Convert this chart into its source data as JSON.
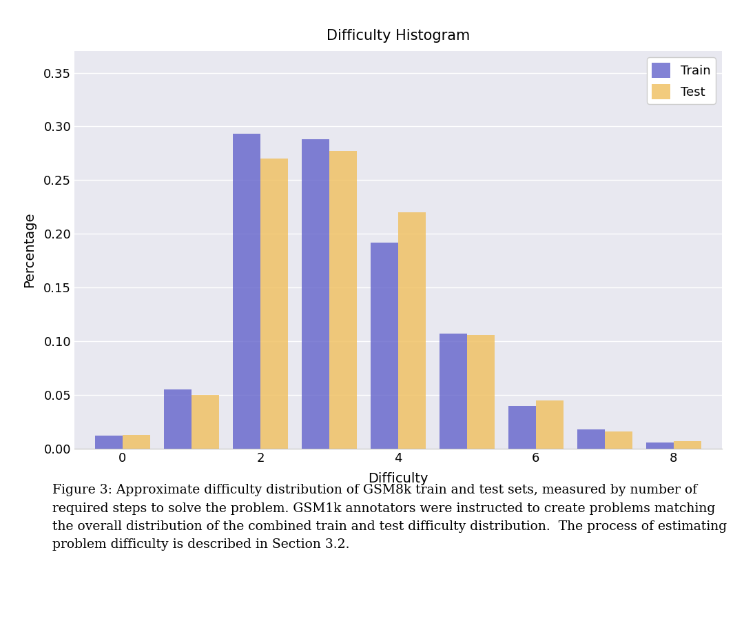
{
  "title": "Difficulty Histogram",
  "xlabel": "Difficulty",
  "ylabel": "Percentage",
  "train_values": [
    0.012,
    0.055,
    0.293,
    0.288,
    0.192,
    0.107,
    0.04,
    0.018,
    0.006
  ],
  "test_values": [
    0.013,
    0.05,
    0.27,
    0.277,
    0.22,
    0.106,
    0.045,
    0.016,
    0.007
  ],
  "x_positions": [
    0,
    1,
    2,
    3,
    4,
    5,
    6,
    7,
    8
  ],
  "x_tick_positions": [
    0,
    2,
    4,
    6,
    8
  ],
  "x_tick_labels": [
    "0",
    "2",
    "4",
    "6",
    "8"
  ],
  "ylim": [
    0,
    0.37
  ],
  "yticks": [
    0.0,
    0.05,
    0.1,
    0.15,
    0.2,
    0.25,
    0.3,
    0.35
  ],
  "ytick_labels": [
    "0.00",
    "0.05",
    "0.10",
    "0.15",
    "0.20",
    "0.25",
    "0.30",
    "0.35"
  ],
  "train_color": "#6666cc",
  "test_color": "#f0c060",
  "bar_width": 0.4,
  "plot_bg_color": "#e8e8f0",
  "fig_bg_color": "#ffffff",
  "legend_labels": [
    "Train",
    "Test"
  ],
  "caption_line1": "Figure 3: Approximate difficulty distribution of GSM8k train and test sets, measured by number of",
  "caption_line2": "required steps to solve the problem. GSM1k annotators were instructed to create problems matching",
  "caption_line3": "the overall distribution of the combined train and test difficulty distribution.  The process of estimating",
  "caption_line4": "problem difficulty is described in Section 3.2.",
  "title_fontsize": 15,
  "axis_fontsize": 14,
  "tick_fontsize": 13,
  "legend_fontsize": 13,
  "caption_fontsize": 13.5
}
